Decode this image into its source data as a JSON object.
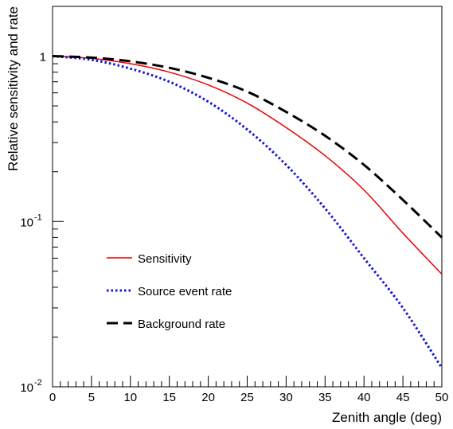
{
  "chart_data": {
    "type": "line",
    "title": "",
    "xlabel": "Zenith angle (deg)",
    "ylabel": "Relative sensitivity and rate",
    "xlim": [
      0,
      50
    ],
    "ylim": [
      0.01,
      2
    ],
    "yscale": "log",
    "grid": false,
    "legend_position": "bottom-left",
    "x_ticks": [
      "0",
      "5",
      "10",
      "15",
      "20",
      "25",
      "30",
      "35",
      "40",
      "45",
      "50"
    ],
    "y_ticks": [
      {
        "value": 1,
        "base": "1",
        "exp": ""
      },
      {
        "value": 0.1,
        "base": "10",
        "exp": "-1"
      },
      {
        "value": 0.01,
        "base": "10",
        "exp": "-2"
      }
    ],
    "x": [
      0,
      5,
      10,
      15,
      20,
      25,
      30,
      35,
      40,
      45,
      50
    ],
    "series": [
      {
        "name": "Sensitivity",
        "color": "#ee0000",
        "dash": "solid",
        "values": [
          1.0,
          0.97,
          0.9,
          0.8,
          0.67,
          0.52,
          0.37,
          0.25,
          0.155,
          0.085,
          0.048
        ]
      },
      {
        "name": "Source event rate",
        "color": "#1111dd",
        "dash": "dotted",
        "values": [
          1.0,
          0.95,
          0.84,
          0.7,
          0.53,
          0.36,
          0.22,
          0.12,
          0.06,
          0.03,
          0.013
        ]
      },
      {
        "name": "Background rate",
        "color": "#000000",
        "dash": "dashed",
        "values": [
          1.0,
          0.98,
          0.93,
          0.85,
          0.74,
          0.61,
          0.46,
          0.33,
          0.22,
          0.135,
          0.08
        ]
      }
    ]
  }
}
